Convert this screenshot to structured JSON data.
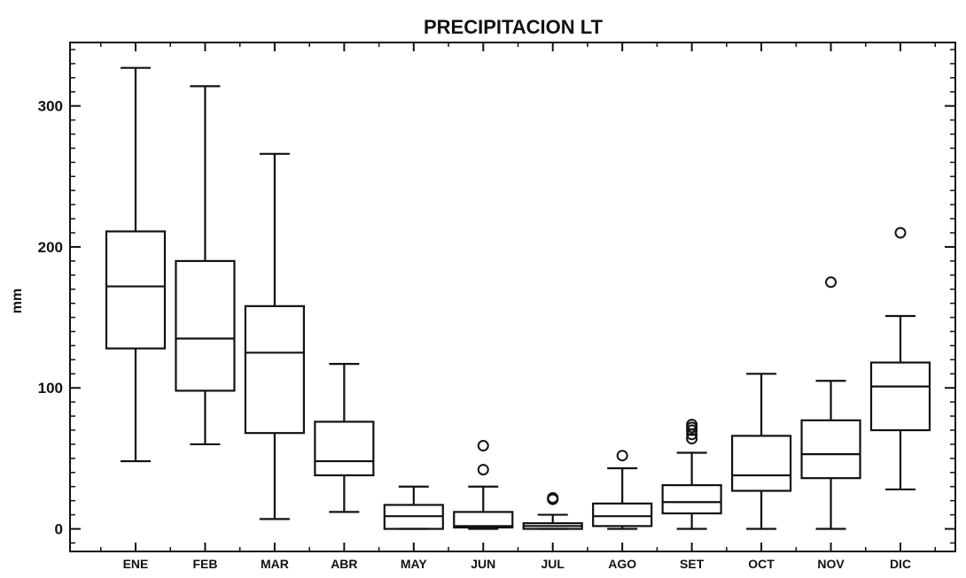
{
  "chart_data": {
    "type": "boxplot",
    "title": "PRECIPITACION LT",
    "xlabel": "",
    "ylabel": "mm",
    "ylim": [
      -16,
      345
    ],
    "yticks": [
      0,
      100,
      200,
      300
    ],
    "grid": false,
    "categories": [
      "ENE",
      "FEB",
      "MAR",
      "ABR",
      "MAY",
      "JUN",
      "JUL",
      "AGO",
      "SET",
      "OCT",
      "NOV",
      "DIC"
    ],
    "boxes": [
      {
        "label": "ENE",
        "min": 48,
        "q1": 128,
        "median": 172,
        "q3": 211,
        "max": 327,
        "outliers": []
      },
      {
        "label": "FEB",
        "min": 60,
        "q1": 98,
        "median": 135,
        "q3": 190,
        "max": 314,
        "outliers": []
      },
      {
        "label": "MAR",
        "min": 7,
        "q1": 68,
        "median": 125,
        "q3": 158,
        "max": 266,
        "outliers": []
      },
      {
        "label": "ABR",
        "min": 12,
        "q1": 38,
        "median": 48,
        "q3": 76,
        "max": 117,
        "outliers": []
      },
      {
        "label": "MAY",
        "min": 0,
        "q1": 0,
        "median": 9,
        "q3": 17,
        "max": 30,
        "outliers": []
      },
      {
        "label": "JUN",
        "min": 0,
        "q1": 1,
        "median": 2,
        "q3": 12,
        "max": 30,
        "outliers": [
          42,
          59
        ]
      },
      {
        "label": "JUL",
        "min": 0,
        "q1": 0,
        "median": 2,
        "q3": 4,
        "max": 10,
        "outliers": [
          21,
          22
        ]
      },
      {
        "label": "AGO",
        "min": 0,
        "q1": 2,
        "median": 9,
        "q3": 18,
        "max": 43,
        "outliers": [
          52
        ]
      },
      {
        "label": "SET",
        "min": 0,
        "q1": 11,
        "median": 19,
        "q3": 31,
        "max": 54,
        "outliers": [
          64,
          67,
          70,
          72,
          74
        ]
      },
      {
        "label": "OCT",
        "min": 0,
        "q1": 27,
        "median": 38,
        "q3": 66,
        "max": 110,
        "outliers": []
      },
      {
        "label": "NOV",
        "min": 0,
        "q1": 36,
        "median": 53,
        "q3": 77,
        "max": 105,
        "outliers": [
          175
        ]
      },
      {
        "label": "DIC",
        "min": 28,
        "q1": 70,
        "median": 101,
        "q3": 118,
        "max": 151,
        "outliers": [
          210
        ]
      }
    ]
  }
}
